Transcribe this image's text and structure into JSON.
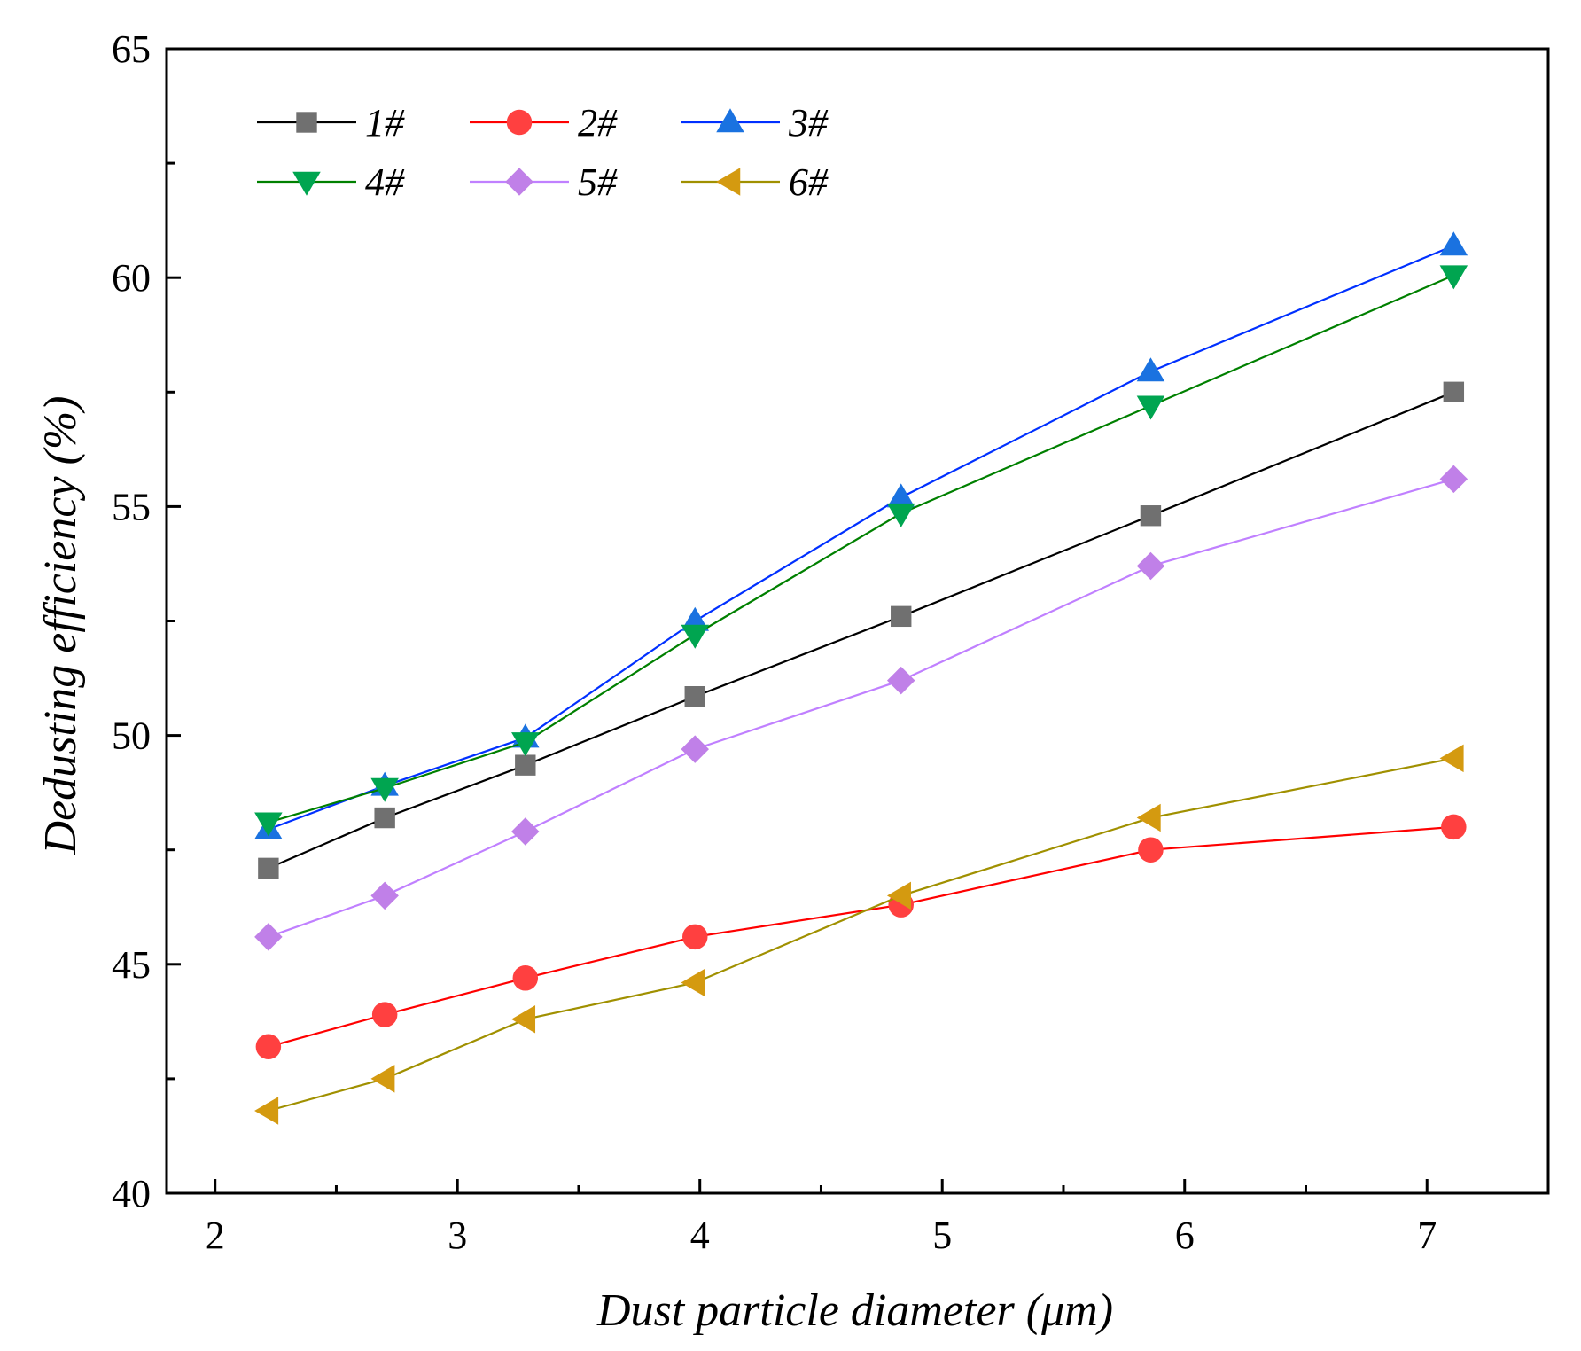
{
  "chart_data": {
    "type": "line",
    "title": "",
    "xlabel": "Dust particle diameter (μm)",
    "ylabel": "Dedusting efficiency (%)",
    "xlim": [
      1.8,
      7.5
    ],
    "ylim": [
      40,
      65
    ],
    "xticks": [
      2,
      3,
      4,
      5,
      6,
      7
    ],
    "yticks": [
      40,
      45,
      50,
      55,
      60,
      65
    ],
    "x": [
      2.22,
      2.7,
      3.28,
      3.98,
      4.83,
      5.86,
      7.11
    ],
    "legend_position": "top-left",
    "grid": false,
    "series": [
      {
        "name": "1#",
        "marker": "square",
        "line_color": "#000000",
        "marker_color": "#707070",
        "values": [
          47.1,
          48.2,
          49.35,
          50.85,
          52.6,
          54.8,
          57.5
        ]
      },
      {
        "name": "2#",
        "marker": "circle",
        "line_color": "#ff0000",
        "marker_color": "#ff4040",
        "values": [
          43.2,
          43.9,
          44.7,
          45.6,
          46.3,
          47.5,
          48.0
        ]
      },
      {
        "name": "3#",
        "marker": "triangle-up",
        "line_color": "#0030ff",
        "marker_color": "#1a72e0",
        "values": [
          47.95,
          48.9,
          49.95,
          52.5,
          55.2,
          57.95,
          60.7
        ]
      },
      {
        "name": "4#",
        "marker": "triangle-down",
        "line_color": "#008000",
        "marker_color": "#00a550",
        "values": [
          48.1,
          48.85,
          49.85,
          52.2,
          54.85,
          57.2,
          60.05
        ]
      },
      {
        "name": "5#",
        "marker": "diamond",
        "line_color": "#c080ff",
        "marker_color": "#c080e8",
        "values": [
          45.6,
          46.5,
          47.9,
          49.7,
          51.2,
          53.7,
          55.6
        ]
      },
      {
        "name": "6#",
        "marker": "triangle-left",
        "line_color": "#a09000",
        "marker_color": "#d49a10",
        "values": [
          41.8,
          42.5,
          43.8,
          44.6,
          46.5,
          48.2,
          49.5
        ]
      }
    ]
  }
}
